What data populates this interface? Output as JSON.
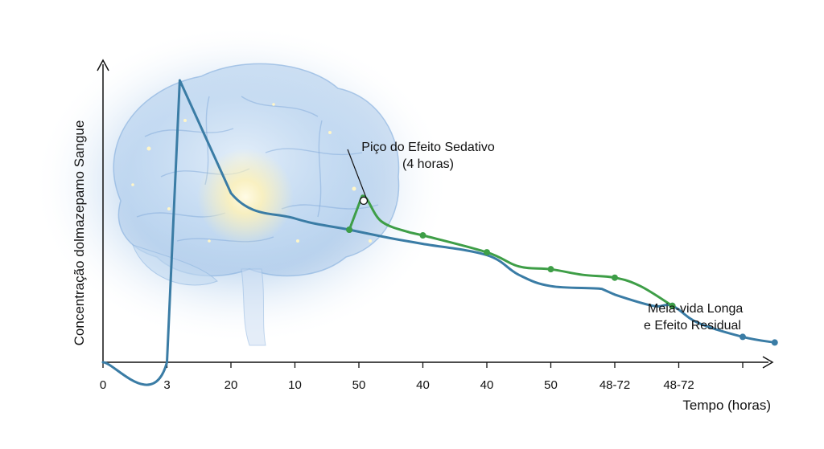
{
  "chart_data": {
    "type": "line",
    "title": "",
    "xlabel": "Tempo (horas)",
    "ylabel": "Concentração dolmazepamo Sangue",
    "x_tick_labels": [
      "0",
      "3",
      "20",
      "10",
      "50",
      "40",
      "40",
      "50",
      "48-72",
      "48-72"
    ],
    "y_range": [
      0,
      100
    ],
    "grid": false,
    "legend": "none",
    "series": [
      {
        "color": "#3a7ca5",
        "points": [
          [
            0,
            0
          ],
          [
            1,
            0
          ],
          [
            1.2,
            100
          ],
          [
            2,
            60
          ],
          [
            3,
            51
          ],
          [
            3.85,
            47
          ],
          [
            4.5,
            44
          ],
          [
            5,
            42
          ],
          [
            6,
            38
          ],
          [
            6.5,
            31
          ],
          [
            7,
            27
          ],
          [
            7.8,
            26
          ],
          [
            8,
            24
          ],
          [
            8.6,
            20
          ],
          [
            8.9,
            20
          ],
          [
            9.3,
            14
          ],
          [
            10,
            9
          ],
          [
            10.5,
            7
          ]
        ],
        "markers": [
          [
            3.85,
            47
          ],
          [
            8.9,
            20
          ],
          [
            10,
            9
          ],
          [
            10.5,
            7
          ]
        ]
      },
      {
        "color": "#3e9e47",
        "points": [
          [
            3.85,
            47
          ],
          [
            4.05,
            59
          ],
          [
            4.35,
            50
          ],
          [
            4.8,
            46
          ],
          [
            5,
            45
          ],
          [
            6,
            39
          ],
          [
            6.5,
            34
          ],
          [
            7,
            33
          ],
          [
            7.5,
            31
          ],
          [
            8,
            30
          ],
          [
            8.4,
            27
          ],
          [
            8.9,
            20
          ]
        ],
        "markers": [
          [
            3.85,
            47
          ],
          [
            5,
            45
          ],
          [
            6,
            39
          ],
          [
            7,
            33
          ],
          [
            8,
            30
          ],
          [
            8.9,
            20
          ]
        ]
      }
    ],
    "annotations": [
      {
        "text_lines": [
          "Piço do Efeito Sedativo",
          "(4 horas)"
        ],
        "x": 4.05,
        "y": 59
      },
      {
        "text_lines": [
          "Meia-vida Longa",
          "e Efeito Residual"
        ],
        "x": 10,
        "y": 9
      }
    ]
  },
  "colors": {
    "axis": "#111111",
    "glow": "#7fb3e0",
    "brain": "#5b8fd0"
  },
  "icons": {
    "background": "brain-illustration"
  }
}
